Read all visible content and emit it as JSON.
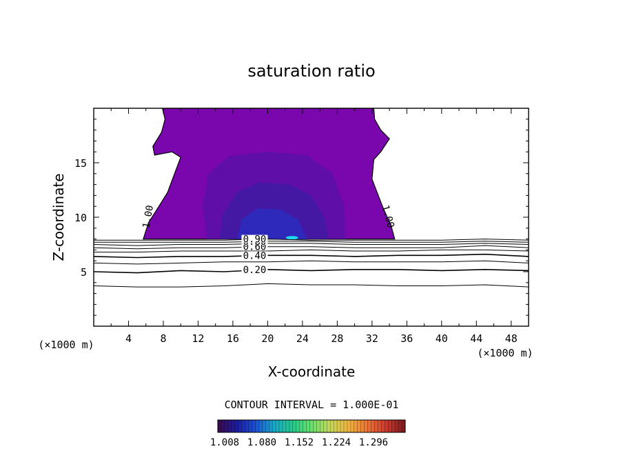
{
  "chart_data": {
    "type": "contour",
    "title": "saturation ratio",
    "xlabel": "X-coordinate",
    "ylabel": "Z-coordinate",
    "x_unit": "(×1000 m)",
    "y_unit": "(×1000 m)",
    "xlim": [
      0,
      50
    ],
    "ylim": [
      0,
      20
    ],
    "xticks": [
      4,
      8,
      12,
      16,
      20,
      24,
      28,
      32,
      36,
      40,
      44,
      48
    ],
    "yticks": [
      5,
      10,
      15
    ],
    "grid": false,
    "contour_interval_text": "CONTOUR INTERVAL = 1.000E-01",
    "line_contours": [
      {
        "value": 0.2,
        "label": "0.20",
        "points": [
          [
            0,
            5.0
          ],
          [
            5,
            4.9
          ],
          [
            10,
            5.1
          ],
          [
            15,
            5.0
          ],
          [
            20,
            5.2
          ],
          [
            25,
            5.1
          ],
          [
            30,
            5.2
          ],
          [
            35,
            5.2
          ],
          [
            40,
            5.1
          ],
          [
            45,
            5.2
          ],
          [
            50,
            5.1
          ]
        ]
      },
      {
        "value": 0.1,
        "label": "",
        "points": [
          [
            0,
            3.7
          ],
          [
            5,
            3.6
          ],
          [
            10,
            3.6
          ],
          [
            15,
            3.7
          ],
          [
            20,
            3.9
          ],
          [
            25,
            3.8
          ],
          [
            30,
            3.8
          ],
          [
            35,
            3.7
          ],
          [
            40,
            3.7
          ],
          [
            45,
            3.8
          ],
          [
            50,
            3.6
          ]
        ]
      },
      {
        "value": 0.3,
        "label": "",
        "points": [
          [
            0,
            5.8
          ],
          [
            5,
            5.7
          ],
          [
            10,
            5.8
          ],
          [
            15,
            5.9
          ],
          [
            20,
            5.9
          ],
          [
            25,
            6.0
          ],
          [
            30,
            5.9
          ],
          [
            35,
            5.9
          ],
          [
            40,
            5.9
          ],
          [
            45,
            6.0
          ],
          [
            50,
            5.8
          ]
        ]
      },
      {
        "value": 0.4,
        "label": "0.40",
        "points": [
          [
            0,
            6.4
          ],
          [
            5,
            6.3
          ],
          [
            10,
            6.4
          ],
          [
            15,
            6.4
          ],
          [
            20,
            6.5
          ],
          [
            25,
            6.5
          ],
          [
            30,
            6.4
          ],
          [
            35,
            6.5
          ],
          [
            40,
            6.5
          ],
          [
            45,
            6.6
          ],
          [
            50,
            6.4
          ]
        ]
      },
      {
        "value": 0.5,
        "label": "",
        "points": [
          [
            0,
            6.8
          ],
          [
            5,
            6.8
          ],
          [
            10,
            6.9
          ],
          [
            15,
            6.9
          ],
          [
            20,
            6.9
          ],
          [
            25,
            7.0
          ],
          [
            30,
            6.9
          ],
          [
            35,
            6.9
          ],
          [
            40,
            7.0
          ],
          [
            45,
            7.0
          ],
          [
            50,
            6.9
          ]
        ]
      },
      {
        "value": 0.6,
        "label": "0.60",
        "points": [
          [
            0,
            7.2
          ],
          [
            5,
            7.1
          ],
          [
            10,
            7.2
          ],
          [
            15,
            7.2
          ],
          [
            20,
            7.3
          ],
          [
            25,
            7.3
          ],
          [
            30,
            7.2
          ],
          [
            35,
            7.2
          ],
          [
            40,
            7.2
          ],
          [
            45,
            7.4
          ],
          [
            50,
            7.2
          ]
        ]
      },
      {
        "value": 0.7,
        "label": "",
        "points": [
          [
            0,
            7.5
          ],
          [
            5,
            7.4
          ],
          [
            10,
            7.5
          ],
          [
            15,
            7.5
          ],
          [
            20,
            7.6
          ],
          [
            25,
            7.6
          ],
          [
            30,
            7.5
          ],
          [
            35,
            7.5
          ],
          [
            40,
            7.5
          ],
          [
            45,
            7.6
          ],
          [
            50,
            7.5
          ]
        ]
      },
      {
        "value": 0.8,
        "label": "0.80",
        "points": [
          [
            0,
            7.7
          ],
          [
            5,
            7.7
          ],
          [
            10,
            7.7
          ],
          [
            15,
            7.7
          ],
          [
            20,
            7.8
          ],
          [
            25,
            7.8
          ],
          [
            30,
            7.7
          ],
          [
            35,
            7.7
          ],
          [
            40,
            7.7
          ],
          [
            45,
            7.8
          ],
          [
            50,
            7.7
          ]
        ]
      },
      {
        "value": 0.9,
        "label": "0.90",
        "points": [
          [
            0,
            7.9
          ],
          [
            5,
            7.9
          ],
          [
            10,
            7.9
          ],
          [
            15,
            7.9
          ],
          [
            20,
            8.0
          ],
          [
            25,
            7.9
          ],
          [
            30,
            7.9
          ],
          [
            35,
            7.9
          ],
          [
            40,
            7.9
          ],
          [
            45,
            8.0
          ],
          [
            50,
            7.9
          ]
        ]
      }
    ],
    "supersaturated_region": {
      "contour_value": 1.0,
      "labels": [
        "1.00",
        "1.00"
      ],
      "outline": [
        [
          5.7,
          8.0
        ],
        [
          6.3,
          9.5
        ],
        [
          7.5,
          11.0
        ],
        [
          8.5,
          12.3
        ],
        [
          9.2,
          13.8
        ],
        [
          10.0,
          15.5
        ],
        [
          9.0,
          16.0
        ],
        [
          7.0,
          15.7
        ],
        [
          6.8,
          16.5
        ],
        [
          7.8,
          17.8
        ],
        [
          8.2,
          19.0
        ],
        [
          7.9,
          20.0
        ],
        [
          32.2,
          20.0
        ],
        [
          32.3,
          19.0
        ],
        [
          33.0,
          18.0
        ],
        [
          34.0,
          17.2
        ],
        [
          33.0,
          16.0
        ],
        [
          32.2,
          15.3
        ],
        [
          32.0,
          13.5
        ],
        [
          33.2,
          11.0
        ],
        [
          34.2,
          9.2
        ],
        [
          34.6,
          8.0
        ]
      ],
      "fill_levels": [
        {
          "value": 1.1,
          "outline": [
            [
              13.0,
              8.0
            ],
            [
              12.5,
              11.0
            ],
            [
              13.2,
              14.0
            ],
            [
              15.5,
              15.6
            ],
            [
              20.0,
              16.0
            ],
            [
              24.5,
              15.7
            ],
            [
              27.5,
              14.0
            ],
            [
              28.8,
              11.0
            ],
            [
              29.0,
              8.0
            ]
          ]
        },
        {
          "value": 1.2,
          "outline": [
            [
              14.5,
              8.0
            ],
            [
              14.8,
              10.2
            ],
            [
              16.5,
              12.3
            ],
            [
              19.0,
              13.2
            ],
            [
              22.5,
              13.0
            ],
            [
              25.0,
              12.0
            ],
            [
              26.5,
              10.0
            ],
            [
              27.0,
              8.0
            ]
          ]
        },
        {
          "value": 1.25,
          "outline": [
            [
              16.5,
              8.0
            ],
            [
              17.0,
              9.8
            ],
            [
              18.8,
              10.8
            ],
            [
              21.5,
              10.7
            ],
            [
              23.5,
              9.8
            ],
            [
              24.5,
              8.0
            ]
          ]
        }
      ],
      "hotspots": [
        [
          18.2,
          8.05
        ],
        [
          22.8,
          8.05
        ]
      ]
    },
    "colorbar": {
      "colors": [
        "#3c0a4a",
        "#1b1b9a",
        "#1c4fd2",
        "#18a7c8",
        "#27c98b",
        "#69e06d",
        "#c7d85a",
        "#f0b23f",
        "#ea7334",
        "#c8392d",
        "#7a1a1e"
      ],
      "tick_labels": [
        "1.008",
        "1.080",
        "1.152",
        "1.224",
        "1.296"
      ]
    }
  }
}
